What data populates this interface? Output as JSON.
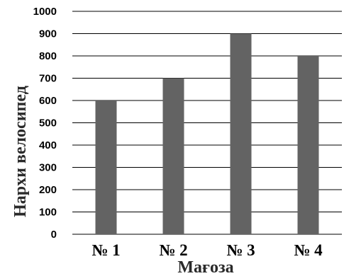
{
  "chart_data": {
    "type": "bar",
    "categories": [
      "№ 1",
      "№ 2",
      "№ 3",
      "№ 4"
    ],
    "values": [
      600,
      700,
      900,
      800
    ],
    "xlabel": "Мағоза",
    "ylabel": "Нархи велосипед",
    "ylim": [
      0,
      1000
    ],
    "yticks": [
      0,
      100,
      200,
      300,
      400,
      500,
      600,
      700,
      800,
      900,
      1000
    ],
    "grid": true,
    "bar_color": "#636363",
    "grid_color": "#000000"
  }
}
